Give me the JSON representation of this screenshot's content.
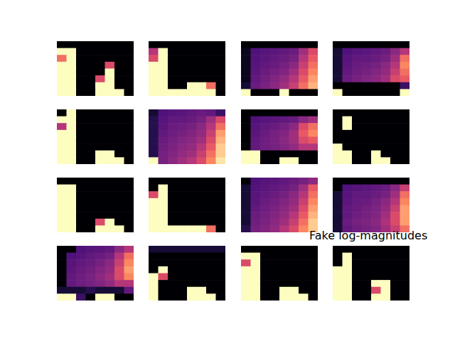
{
  "chart_data": [
    {
      "type": "heatmap",
      "tick_labels": false,
      "color_range": [
        0,
        1
      ],
      "cells": [
        [
          0,
          0,
          0,
          0,
          0,
          0,
          0,
          0
        ],
        [
          1,
          1,
          0,
          0,
          0,
          0,
          0,
          0
        ],
        [
          0.7,
          1,
          0,
          0,
          0,
          0,
          0,
          0
        ],
        [
          1,
          1,
          0,
          0,
          0,
          0.6,
          0,
          0
        ],
        [
          1,
          1,
          0,
          0,
          0,
          1,
          0,
          0
        ],
        [
          1,
          1,
          0,
          0,
          0.6,
          1,
          0,
          0
        ],
        [
          1,
          1,
          0,
          0,
          1,
          1,
          0,
          0
        ],
        [
          1,
          1,
          0,
          0,
          1,
          1,
          1,
          0
        ]
      ]
    },
    {
      "type": "heatmap",
      "tick_labels": false,
      "color_range": [
        0,
        1
      ],
      "cells": [
        [
          0,
          0,
          0,
          0,
          0,
          0,
          0,
          0
        ],
        [
          0.5,
          1,
          0,
          0,
          0,
          0,
          0,
          0
        ],
        [
          0.6,
          1,
          0,
          0,
          0,
          0,
          0,
          0
        ],
        [
          1,
          1,
          0,
          0,
          0,
          0,
          0,
          0
        ],
        [
          1,
          1,
          0,
          0,
          0,
          0,
          0,
          0
        ],
        [
          1,
          1,
          0,
          0,
          0,
          0,
          0,
          0
        ],
        [
          1,
          1,
          0,
          0,
          1,
          1,
          0.7,
          0
        ],
        [
          1,
          1,
          1,
          1,
          1,
          1,
          1,
          0
        ]
      ]
    },
    {
      "type": "heatmap",
      "tick_labels": false,
      "color_range": [
        0,
        1
      ],
      "cells": [
        [
          0,
          0,
          0,
          0,
          0,
          0,
          0,
          0
        ],
        [
          0.05,
          0.25,
          0.27,
          0.28,
          0.3,
          0.32,
          0.45,
          0.6
        ],
        [
          0.05,
          0.26,
          0.28,
          0.3,
          0.32,
          0.35,
          0.5,
          0.65
        ],
        [
          0.05,
          0.27,
          0.3,
          0.32,
          0.35,
          0.4,
          0.55,
          0.7
        ],
        [
          0.05,
          0.28,
          0.32,
          0.35,
          0.38,
          0.45,
          0.6,
          0.75
        ],
        [
          0.05,
          0.3,
          0.34,
          0.38,
          0.42,
          0.5,
          0.65,
          0.8
        ],
        [
          0.1,
          0.32,
          0.36,
          0.4,
          0.45,
          0.55,
          0.7,
          0.85
        ],
        [
          1,
          0,
          0,
          0,
          1,
          0,
          0,
          0
        ]
      ]
    },
    {
      "type": "heatmap",
      "tick_labels": false,
      "color_range": [
        0,
        1
      ],
      "cells": [
        [
          0,
          0,
          0,
          0,
          0,
          0,
          0,
          0
        ],
        [
          0.1,
          0.25,
          0.27,
          0.28,
          0.3,
          0.32,
          0.4,
          0.5
        ],
        [
          0.1,
          0.27,
          0.3,
          0.3,
          0.32,
          0.35,
          0.45,
          0.7
        ],
        [
          0.1,
          0.28,
          0.32,
          0.33,
          0.35,
          0.4,
          0.5,
          0.75
        ],
        [
          0.1,
          0.3,
          0.33,
          0.35,
          0.38,
          0.42,
          0.55,
          0.7
        ],
        [
          0.1,
          0.32,
          0.35,
          0.38,
          0.4,
          0.45,
          0.6,
          0.65
        ],
        [
          0,
          0,
          0,
          0,
          0,
          0,
          0,
          0.2
        ],
        [
          1,
          0,
          0,
          0,
          0,
          0,
          0,
          1
        ]
      ]
    },
    {
      "type": "heatmap",
      "tick_labels": false,
      "color_range": [
        0,
        1
      ],
      "cells": [
        [
          0,
          1,
          0,
          0,
          0,
          0,
          0,
          0
        ],
        [
          1,
          1,
          0,
          0,
          0,
          0,
          0,
          0
        ],
        [
          0.5,
          1,
          0,
          0,
          0,
          0,
          0,
          0
        ],
        [
          1,
          1,
          0,
          0,
          0,
          0,
          0,
          0
        ],
        [
          1,
          1,
          0,
          0,
          0,
          0,
          0,
          0
        ],
        [
          1,
          1,
          0,
          0,
          0,
          0,
          0,
          0
        ],
        [
          1,
          1,
          0,
          0,
          1,
          1,
          0,
          0
        ],
        [
          1,
          1,
          0,
          0,
          1,
          1,
          1,
          0
        ]
      ]
    },
    {
      "type": "heatmap",
      "tick_labels": false,
      "color_range": [
        0,
        1
      ],
      "cells": [
        [
          0.1,
          0.25,
          0.27,
          0.28,
          0.3,
          0.32,
          0.3,
          0.2
        ],
        [
          0.15,
          0.27,
          0.3,
          0.3,
          0.32,
          0.35,
          0.45,
          0.6
        ],
        [
          0.15,
          0.28,
          0.32,
          0.33,
          0.35,
          0.4,
          0.5,
          0.7
        ],
        [
          0.15,
          0.3,
          0.33,
          0.35,
          0.38,
          0.42,
          0.55,
          0.8
        ],
        [
          0.15,
          0.32,
          0.35,
          0.38,
          0.4,
          0.45,
          0.6,
          0.85
        ],
        [
          0.15,
          0.33,
          0.36,
          0.4,
          0.42,
          0.5,
          0.65,
          0.9
        ],
        [
          0.15,
          0.35,
          0.38,
          0.42,
          0.45,
          0.55,
          0.7,
          0.9
        ],
        [
          1,
          0.35,
          0.4,
          0.45,
          0.5,
          0.6,
          0.75,
          0.95
        ]
      ]
    },
    {
      "type": "heatmap",
      "tick_labels": false,
      "color_range": [
        0,
        1
      ],
      "cells": [
        [
          0,
          0,
          0,
          0,
          0,
          0,
          0,
          0
        ],
        [
          0,
          0.25,
          0.27,
          0.28,
          0.3,
          0.32,
          0.4,
          0.45
        ],
        [
          0,
          0.27,
          0.3,
          0.32,
          0.35,
          0.4,
          0.6,
          0.7
        ],
        [
          0,
          0.28,
          0.32,
          0.35,
          0.38,
          0.45,
          0.65,
          0.75
        ],
        [
          0,
          0.3,
          0.33,
          0.36,
          0.4,
          0.45,
          0.6,
          0.65
        ],
        [
          0,
          0.3,
          0.33,
          0.35,
          0.38,
          0.42,
          0.5,
          0.5
        ],
        [
          1,
          1,
          0,
          0,
          0,
          0,
          0,
          0
        ],
        [
          1,
          1,
          0,
          0,
          1,
          1,
          0,
          0
        ]
      ]
    },
    {
      "type": "heatmap",
      "tick_labels": false,
      "color_range": [
        0,
        1
      ],
      "cells": [
        [
          0,
          0,
          0,
          0,
          0,
          0,
          0,
          0
        ],
        [
          0,
          1,
          0,
          0,
          0,
          0,
          0,
          0
        ],
        [
          0,
          1,
          0,
          0,
          0,
          0,
          0,
          0
        ],
        [
          0,
          0,
          0,
          0,
          0,
          0,
          0,
          0
        ],
        [
          0,
          0,
          0,
          0,
          0,
          0,
          0,
          0
        ],
        [
          1,
          0,
          0,
          0,
          0,
          0,
          0,
          0
        ],
        [
          1,
          1,
          0,
          0,
          1,
          0,
          0,
          0
        ],
        [
          1,
          1,
          0,
          0,
          1,
          1,
          0,
          0
        ]
      ]
    },
    {
      "type": "heatmap",
      "tick_labels": false,
      "color_range": [
        0,
        1
      ],
      "cells": [
        [
          0,
          0,
          0,
          0,
          0,
          0,
          0,
          0
        ],
        [
          1,
          1,
          0,
          0,
          0,
          0,
          0,
          0
        ],
        [
          1,
          1,
          0,
          0,
          0,
          0,
          0,
          0
        ],
        [
          1,
          1,
          0,
          0,
          0,
          0,
          0,
          0
        ],
        [
          1,
          1,
          0,
          0,
          0,
          0,
          0,
          0
        ],
        [
          1,
          1,
          0,
          0,
          0,
          0,
          0,
          0
        ],
        [
          1,
          1,
          0,
          0,
          0.6,
          1,
          0,
          0
        ],
        [
          1,
          1,
          0,
          0,
          1,
          1,
          1,
          0
        ]
      ]
    },
    {
      "type": "heatmap",
      "tick_labels": false,
      "color_range": [
        0,
        1
      ],
      "cells": [
        [
          0,
          0,
          0,
          0,
          0,
          0,
          0,
          0
        ],
        [
          0,
          1,
          0,
          0,
          0,
          0,
          0,
          0
        ],
        [
          0.6,
          1,
          0,
          0,
          0,
          0,
          0,
          0
        ],
        [
          1,
          1,
          0,
          0,
          0,
          0,
          0,
          0
        ],
        [
          1,
          1,
          0,
          0,
          0,
          0,
          0,
          0
        ],
        [
          1,
          1,
          0,
          0,
          0,
          0,
          0,
          0
        ],
        [
          1,
          1,
          0,
          0,
          0,
          0,
          0,
          0
        ],
        [
          1,
          1,
          1,
          1,
          1,
          1,
          0.7,
          0
        ]
      ]
    },
    {
      "type": "heatmap",
      "tick_labels": false,
      "color_range": [
        0,
        1
      ],
      "cells": [
        [
          0,
          0.25,
          0.27,
          0.28,
          0.3,
          0.32,
          0.35,
          0.4
        ],
        [
          0.1,
          0.26,
          0.28,
          0.3,
          0.32,
          0.35,
          0.45,
          0.65
        ],
        [
          0.1,
          0.27,
          0.3,
          0.32,
          0.35,
          0.4,
          0.5,
          0.7
        ],
        [
          0.1,
          0.28,
          0.32,
          0.34,
          0.38,
          0.42,
          0.55,
          0.75
        ],
        [
          0.1,
          0.3,
          0.33,
          0.36,
          0.4,
          0.45,
          0.6,
          0.8
        ],
        [
          0.1,
          0.32,
          0.35,
          0.38,
          0.42,
          0.5,
          0.65,
          0.85
        ],
        [
          0.1,
          0.33,
          0.36,
          0.4,
          0.45,
          0.55,
          0.7,
          0.9
        ],
        [
          0.15,
          0.35,
          0.38,
          0.42,
          0.5,
          0.6,
          0.75,
          0.9
        ]
      ]
    },
    {
      "type": "heatmap",
      "tick_labels": false,
      "color_range": [
        0,
        1
      ],
      "annotations": [
        "Fake log-magnitudes"
      ],
      "cells": [
        [
          0,
          0,
          0,
          0,
          0,
          0,
          0,
          0
        ],
        [
          0,
          0.25,
          0.27,
          0.28,
          0.3,
          0.32,
          0.4,
          0.55
        ],
        [
          0.1,
          0.27,
          0.3,
          0.3,
          0.32,
          0.35,
          0.45,
          0.7
        ],
        [
          0.1,
          0.28,
          0.31,
          0.32,
          0.35,
          0.4,
          0.5,
          0.75
        ],
        [
          0.1,
          0.3,
          0.32,
          0.34,
          0.37,
          0.42,
          0.55,
          0.8
        ],
        [
          0.1,
          0.3,
          0.33,
          0.35,
          0.38,
          0.45,
          0.6,
          0.8
        ],
        [
          0.1,
          0.32,
          0.35,
          0.37,
          0.4,
          0.48,
          0.6,
          0.8
        ],
        [
          0.1,
          0.3,
          0.33,
          0.35,
          0.38,
          0.45,
          0.55,
          0.7
        ]
      ]
    },
    {
      "type": "heatmap",
      "tick_labels": false,
      "color_range": [
        0,
        1
      ],
      "cells": [
        [
          0,
          0,
          0.25,
          0.27,
          0.28,
          0.3,
          0.4,
          0.5
        ],
        [
          0,
          0.25,
          0.27,
          0.3,
          0.32,
          0.35,
          0.5,
          0.7
        ],
        [
          0,
          0.27,
          0.3,
          0.32,
          0.35,
          0.4,
          0.55,
          0.75
        ],
        [
          0,
          0.28,
          0.32,
          0.34,
          0.38,
          0.42,
          0.6,
          0.8
        ],
        [
          0,
          0.3,
          0.33,
          0.36,
          0.4,
          0.45,
          0.6,
          0.75
        ],
        [
          0,
          0.3,
          0.33,
          0.35,
          0.38,
          0.42,
          0.5,
          0.5
        ],
        [
          0.1,
          0.1,
          0.1,
          0.15,
          0.1,
          0.1,
          0.1,
          0.3
        ],
        [
          1,
          1,
          0.2,
          0,
          1,
          1,
          0,
          0
        ]
      ]
    },
    {
      "type": "heatmap",
      "tick_labels": false,
      "color_range": [
        0,
        1
      ],
      "cells": [
        [
          0.1,
          0.1,
          0.1,
          0.1,
          0.1,
          0.1,
          0.1,
          0.1
        ],
        [
          0,
          0,
          0,
          0,
          0,
          0,
          0,
          0
        ],
        [
          0,
          0,
          0,
          0,
          0,
          0,
          0,
          0
        ],
        [
          0,
          1,
          0,
          0,
          0,
          0,
          0,
          0
        ],
        [
          1,
          0.6,
          0,
          0,
          0,
          0,
          0,
          0
        ],
        [
          1,
          0,
          0,
          0,
          0,
          0,
          0,
          0
        ],
        [
          1,
          0,
          0,
          0,
          1,
          1,
          0,
          0
        ],
        [
          1,
          0,
          0,
          0,
          1,
          1,
          1,
          0
        ]
      ]
    },
    {
      "type": "heatmap",
      "tick_labels": false,
      "color_range": [
        0,
        1
      ],
      "cells": [
        [
          0,
          0,
          0,
          0,
          0,
          0,
          0,
          0
        ],
        [
          1,
          1,
          0,
          0,
          0,
          0,
          0,
          0
        ],
        [
          0.6,
          1,
          0,
          0,
          0,
          0,
          0,
          0
        ],
        [
          1,
          1,
          0,
          0,
          0,
          0,
          0,
          0
        ],
        [
          1,
          1,
          0,
          0,
          0,
          0,
          0,
          0
        ],
        [
          1,
          1,
          0,
          0,
          0,
          0,
          0,
          0
        ],
        [
          1,
          1,
          0,
          0,
          1,
          1,
          0,
          0
        ],
        [
          1,
          1,
          0,
          0,
          1,
          1,
          1,
          0
        ]
      ]
    },
    {
      "type": "heatmap",
      "tick_labels": false,
      "color_range": [
        0,
        1
      ],
      "cells": [
        [
          0,
          0,
          0,
          0,
          0,
          0,
          0,
          0
        ],
        [
          0,
          1,
          0,
          0,
          0,
          0,
          0,
          0
        ],
        [
          0,
          1,
          0,
          0,
          0,
          0,
          0,
          0
        ],
        [
          1,
          1,
          0,
          0,
          0,
          0,
          0,
          0
        ],
        [
          1,
          1,
          0,
          0,
          0,
          0,
          0,
          0
        ],
        [
          1,
          1,
          0,
          0,
          1,
          1,
          0,
          0
        ],
        [
          1,
          1,
          0,
          0,
          0.6,
          1,
          0,
          0
        ],
        [
          1,
          1,
          0,
          0,
          1,
          1,
          0,
          0
        ]
      ]
    }
  ]
}
